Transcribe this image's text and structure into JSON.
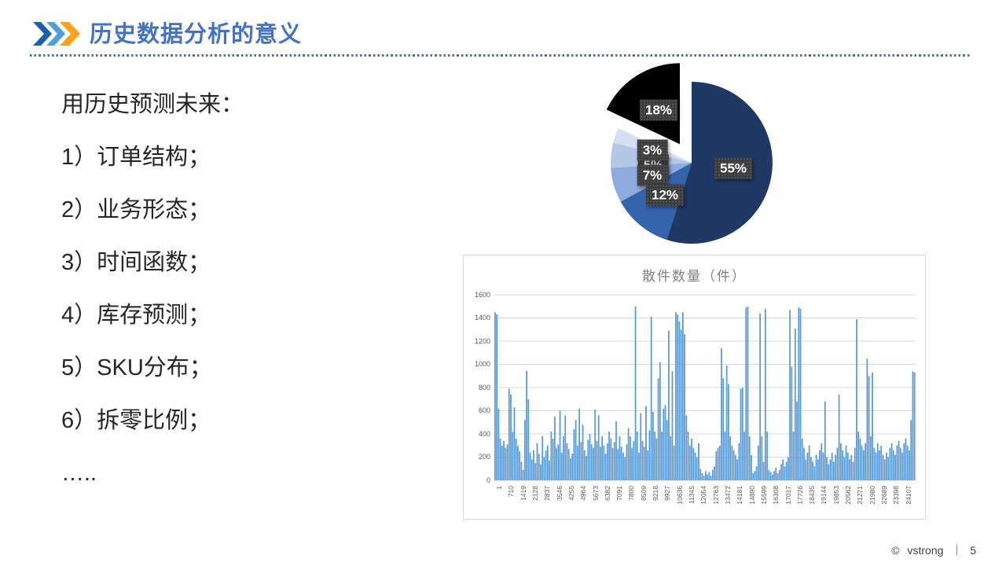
{
  "slide": {
    "title": "历史数据分析的意义",
    "title_color": "#4472C4",
    "chevron_colors": [
      "#1B61A5",
      "#4E9FDB",
      "#F9A11B"
    ],
    "divider_color": "#41719C"
  },
  "list": {
    "heading": "用历史预测未来：",
    "items": [
      "1）订单结构；",
      "2）业务形态；",
      "3）时间函数；",
      "4）库存预测；",
      "5）SKU分布；",
      "6）拆零比例；",
      "….."
    ]
  },
  "footer": {
    "copyright": "©",
    "author": "vstrong",
    "separator": "｜",
    "page": "5"
  },
  "chart_data": [
    {
      "type": "pie",
      "title": "",
      "direction": "clockwise",
      "start_angle_deg": 0,
      "legend": "none",
      "label_style": "dark-dotted-box-white-text",
      "slices": [
        {
          "label": "55%",
          "value": 55,
          "color": "#1F3864",
          "exploded": false
        },
        {
          "label": "12%",
          "value": 12,
          "color": "#3563AC",
          "exploded": false
        },
        {
          "label": "7%",
          "value": 7,
          "color": "#8FAADC",
          "exploded": false
        },
        {
          "label": "5%",
          "value": 5,
          "color": "#B4C7E7",
          "exploded": false
        },
        {
          "label": "3%",
          "value": 3,
          "color": "#D6DFF2",
          "exploded": false
        },
        {
          "label": "18%",
          "value": 18,
          "color": "#000000",
          "exploded": true
        }
      ]
    },
    {
      "type": "bar",
      "title": "散件数量（件）",
      "xlabel": "",
      "ylabel": "",
      "ylim": [
        0,
        1600
      ],
      "y_ticks": [
        0,
        200,
        400,
        600,
        800,
        1000,
        1200,
        1400,
        1600
      ],
      "grid": true,
      "bar_color": "#5B9BD5",
      "x_tick_labels": [
        "1",
        "710",
        "1419",
        "2128",
        "2837",
        "3546",
        "4255",
        "4964",
        "5673",
        "6382",
        "7091",
        "7800",
        "8509",
        "9218",
        "9927",
        "10636",
        "11345",
        "12054",
        "12763",
        "13472",
        "14181",
        "14890",
        "15599",
        "16308",
        "17017",
        "17726",
        "18435",
        "19144",
        "19853",
        "20562",
        "21271",
        "21980",
        "22689",
        "23398",
        "24107"
      ],
      "x_range": [
        1,
        24816
      ],
      "values": [
        1450,
        1430,
        620,
        360,
        300,
        340,
        280,
        310,
        790,
        740,
        420,
        630,
        360,
        300,
        250,
        160,
        90,
        520,
        945,
        700,
        240,
        180,
        260,
        150,
        320,
        230,
        140,
        380,
        200,
        260,
        300,
        170,
        420,
        360,
        550,
        280,
        310,
        600,
        240,
        380,
        560,
        320,
        270,
        190,
        230,
        440,
        520,
        300,
        620,
        330,
        480,
        260,
        210,
        350,
        400,
        310,
        280,
        610,
        340,
        560,
        290,
        380,
        300,
        230,
        320,
        420,
        360,
        280,
        330,
        510,
        270,
        380,
        290,
        240,
        200,
        310,
        450,
        380,
        280,
        340,
        1500,
        420,
        240,
        580,
        340,
        290,
        640,
        260,
        430,
        1410,
        590,
        420,
        360,
        880,
        1020,
        420,
        620,
        650,
        520,
        1290,
        380,
        940,
        300,
        1450,
        1430,
        1370,
        1300,
        1450,
        1260,
        560,
        420,
        300,
        360,
        280,
        240,
        200,
        320,
        100,
        60,
        40,
        80,
        50,
        70,
        40,
        90,
        120,
        250,
        280,
        300,
        1140,
        880,
        420,
        990,
        830,
        380,
        300,
        260,
        220,
        180,
        320,
        790,
        800,
        420,
        1490,
        1500,
        380,
        220,
        60,
        80,
        120,
        300,
        1440,
        380,
        160,
        1480,
        420,
        90,
        70,
        50,
        80,
        110,
        60,
        90,
        140,
        180,
        120,
        160,
        200,
        1470,
        980,
        420,
        1310,
        680,
        1490,
        1480,
        360,
        280,
        180,
        240,
        300,
        200,
        160,
        120,
        220,
        180,
        260,
        320,
        240,
        680,
        200,
        140,
        180,
        240,
        160,
        220,
        280,
        740,
        320,
        260,
        200,
        300,
        240,
        180,
        220,
        160,
        280,
        1390,
        420,
        360,
        300,
        260,
        320,
        1050,
        900,
        380,
        930,
        280,
        240,
        320,
        260,
        300,
        220,
        180,
        240,
        200,
        280,
        320,
        260,
        220,
        300,
        340,
        280,
        240,
        320,
        360,
        300,
        260,
        520,
        940,
        930
      ]
    }
  ]
}
